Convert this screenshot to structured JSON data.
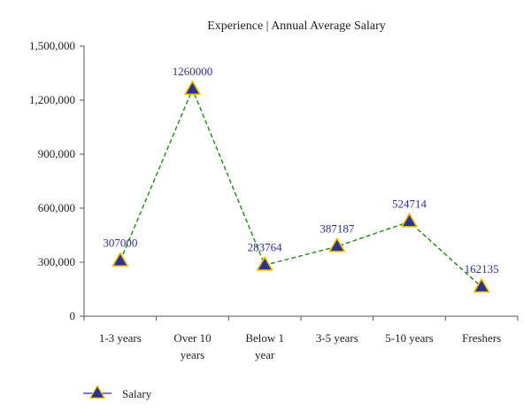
{
  "chart_data": {
    "type": "line",
    "title": "Experience | Annual Average Salary",
    "xlabel": "",
    "ylabel": "",
    "categories": [
      "1-3 years",
      "Over 10 years",
      "Below 1 year",
      "3-5 years",
      "5-10 years",
      "Freshers"
    ],
    "category_lines": [
      [
        "1-3 years"
      ],
      [
        "Over 10",
        "years"
      ],
      [
        "Below 1",
        "year"
      ],
      [
        "3-5 years"
      ],
      [
        "5-10 years"
      ],
      [
        "Freshers"
      ]
    ],
    "series": [
      {
        "name": "Salary",
        "values": [
          307000,
          1260000,
          283764,
          387187,
          524714,
          162135
        ],
        "labels": [
          "307000",
          "1260000",
          "283764",
          "387187",
          "524714",
          "162135"
        ]
      }
    ],
    "ylim": [
      0,
      1500000
    ],
    "yticks": [
      0,
      300000,
      600000,
      900000,
      1200000,
      1500000
    ],
    "ytick_labels": [
      "0",
      "300,000",
      "600,000",
      "900,000",
      "1,200,000",
      "1,500,000"
    ],
    "grid": false,
    "legend_position": "bottom-left",
    "colors": {
      "line": "#2e8b22",
      "marker_fill": "#2e3192",
      "marker_stroke": "#f2c400",
      "label": "#2e3192",
      "axis": "#555555"
    }
  }
}
